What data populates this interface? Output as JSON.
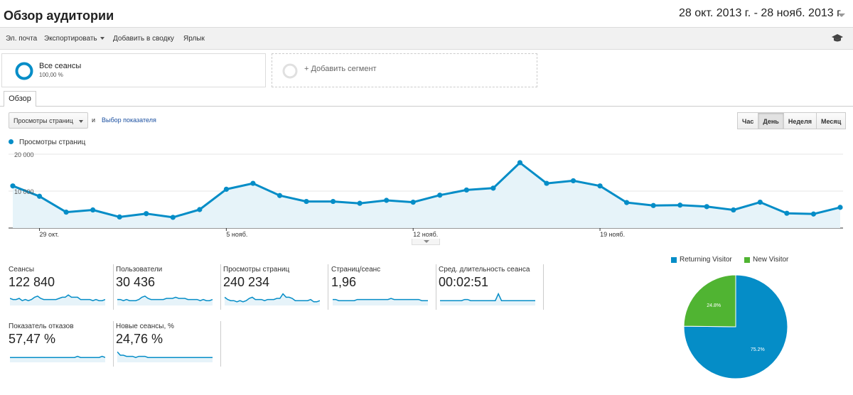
{
  "header": {
    "title": "Обзор аудитории",
    "date_range": "28 окт. 2013 г. - 28 нояб. 2013 г."
  },
  "toolbar": {
    "email": "Эл. почта",
    "export": "Экспортировать",
    "add_to_dashboard": "Добавить в сводку",
    "shortcut": "Ярлык",
    "icon": "graduation-cap-icon"
  },
  "segments": {
    "all_sessions": {
      "name": "Все сеансы",
      "percent": "100,00 %"
    },
    "add_segment": "+ Добавить сегмент"
  },
  "tabs": [
    {
      "label": "Обзор"
    }
  ],
  "controls": {
    "metric_select": "Просмотры страниц",
    "and_label": "и",
    "choose_metric": "Выбор показателя",
    "period_buttons": [
      {
        "label": "Час",
        "active": false
      },
      {
        "label": "День",
        "active": true
      },
      {
        "label": "Неделя",
        "active": false
      },
      {
        "label": "Месяц",
        "active": false
      }
    ]
  },
  "chart_data": {
    "type": "area",
    "legend": "Просмотры страниц",
    "color": "#058dc7",
    "fill": "#e6f3f9",
    "ylim": [
      0,
      20000
    ],
    "ytick_values": [
      10000,
      20000
    ],
    "ytick_labels": [
      "10 000",
      "20 000"
    ],
    "xtick_labels": [
      {
        "day": 1,
        "label": "29 окт."
      },
      {
        "day": 8,
        "label": "5 нояб."
      },
      {
        "day": 15,
        "label": "12 нояб."
      },
      {
        "day": 22,
        "label": "19 нояб."
      }
    ],
    "x": [
      "28 окт.",
      "29 окт.",
      "30 окт.",
      "31 окт.",
      "1 нояб.",
      "2 нояб.",
      "3 нояб.",
      "4 нояб.",
      "5 нояб.",
      "6 нояб.",
      "7 нояб.",
      "8 нояб.",
      "9 нояб.",
      "10 нояб.",
      "11 нояб.",
      "12 нояб.",
      "13 нояб.",
      "14 нояб.",
      "15 нояб.",
      "16 нояб.",
      "17 нояб.",
      "18 нояб.",
      "19 нояб.",
      "20 нояб.",
      "21 нояб.",
      "22 нояб.",
      "23 нояб.",
      "24 нояб.",
      "25 нояб.",
      "26 нояб.",
      "27 нояб.",
      "28 нояб."
    ],
    "values": [
      11400,
      8600,
      4300,
      4900,
      3000,
      3900,
      2900,
      5000,
      10500,
      12100,
      8800,
      7200,
      7200,
      6700,
      7500,
      7000,
      8900,
      10300,
      10800,
      17700,
      12100,
      12800,
      11400,
      6900,
      6100,
      6200,
      5800,
      4900,
      7000,
      4000,
      3800,
      5600
    ]
  },
  "metrics": [
    {
      "label": "Сеансы",
      "value": "122 840",
      "spark": [
        5,
        4,
        4,
        5,
        3,
        4,
        3,
        4,
        6,
        7,
        5,
        4,
        4,
        4,
        4,
        4,
        5,
        6,
        6,
        8,
        6,
        6,
        6,
        4,
        4,
        4,
        4,
        3,
        4,
        3,
        3,
        4
      ]
    },
    {
      "label": "Пользователи",
      "value": "30 436",
      "spark": [
        4,
        4,
        3,
        4,
        3,
        3,
        3,
        4,
        6,
        7,
        5,
        4,
        4,
        4,
        4,
        4,
        5,
        5,
        5,
        6,
        5,
        5,
        5,
        4,
        4,
        4,
        4,
        3,
        4,
        3,
        3,
        4
      ]
    },
    {
      "label": "Просмотры страниц",
      "value": "240 234",
      "spark": [
        6,
        4,
        3,
        3,
        2,
        3,
        2,
        3,
        5,
        6,
        4,
        4,
        4,
        3,
        4,
        4,
        4,
        5,
        5,
        9,
        6,
        6,
        5,
        3,
        3,
        3,
        3,
        3,
        4,
        2,
        2,
        3
      ]
    },
    {
      "label": "Страниц/сеанс",
      "value": "1,96",
      "spark": [
        4,
        4,
        3,
        3,
        3,
        3,
        3,
        3,
        4,
        4,
        4,
        4,
        4,
        4,
        4,
        4,
        4,
        4,
        4,
        5,
        4,
        4,
        4,
        4,
        4,
        4,
        4,
        4,
        4,
        3,
        3,
        3
      ]
    },
    {
      "label": "Сред. длительность сеанса",
      "value": "00:02:51",
      "spark": [
        3,
        3,
        3,
        3,
        3,
        3,
        3,
        3,
        4,
        4,
        3,
        3,
        3,
        3,
        3,
        3,
        3,
        3,
        3,
        9,
        3,
        3,
        3,
        3,
        3,
        3,
        3,
        3,
        3,
        3,
        3,
        3
      ]
    },
    {
      "label": "Показатель отказов",
      "value": "57,47 %",
      "spark": [
        3,
        3,
        3,
        3,
        3,
        3,
        3,
        3,
        3,
        3,
        3,
        3,
        3,
        3,
        3,
        3,
        3,
        3,
        3,
        3,
        3,
        3,
        4,
        3,
        3,
        3,
        3,
        3,
        3,
        3,
        4,
        3
      ]
    },
    {
      "label": "Новые сеансы, %",
      "value": "24,76 %",
      "spark": [
        8,
        5,
        5,
        4,
        4,
        4,
        3,
        4,
        4,
        4,
        3,
        3,
        3,
        3,
        3,
        3,
        3,
        3,
        3,
        3,
        3,
        3,
        3,
        3,
        3,
        3,
        3,
        3,
        3,
        3,
        3,
        3
      ]
    }
  ],
  "pie": {
    "legend": [
      {
        "label": "Returning Visitor",
        "color": "#058dc7"
      },
      {
        "label": "New Visitor",
        "color": "#50b432"
      }
    ],
    "slices": [
      {
        "name": "Returning Visitor",
        "value": 75.2,
        "label": "75.2%",
        "color": "#058dc7"
      },
      {
        "name": "New Visitor",
        "value": 24.8,
        "label": "24.8%",
        "color": "#50b432"
      }
    ]
  }
}
